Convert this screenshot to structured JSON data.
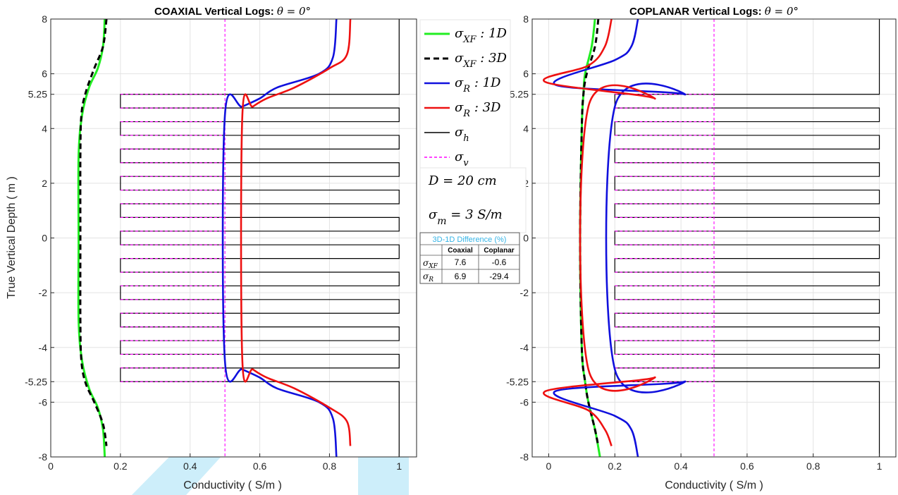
{
  "colors": {
    "xf1d": "#22ee22",
    "xf3d": "#000000",
    "r1d": "#1010dd",
    "r3d": "#ee1111",
    "sigma_h": "#000000",
    "sigma_v": "#ff00ff",
    "watermark": "#c8ecfa",
    "table_title": "#35b4e6"
  },
  "legend": {
    "items": [
      {
        "symbol": "σ",
        "sub": "XF",
        "suffix": " : 1D",
        "style": "xf1d"
      },
      {
        "symbol": "σ",
        "sub": "XF",
        "suffix": " : 3D",
        "style": "xf3d"
      },
      {
        "symbol": "σ",
        "sub": "R",
        "suffix": " : 1D",
        "style": "r1d"
      },
      {
        "symbol": "σ",
        "sub": "R",
        "suffix": " : 3D",
        "style": "r3d"
      },
      {
        "symbol": "σ",
        "sub": "h",
        "suffix": "",
        "style": "sigma_h"
      },
      {
        "symbol": "σ",
        "sub": "v",
        "suffix": "",
        "style": "sigma_v"
      }
    ]
  },
  "annotations": {
    "d_text": "D = 20 cm",
    "sigma_m_symbol": "σ",
    "sigma_m_sub": "m",
    "sigma_m_rest": " = 3 S/m"
  },
  "difference_table": {
    "title": "3D-1D Difference (%)",
    "columns": [
      "",
      "Coaxial",
      "Coplanar"
    ],
    "rows": [
      {
        "symbol": "σ",
        "sub": "XF",
        "coaxial": "7.6",
        "coplanar": "-0.6"
      },
      {
        "symbol": "σ",
        "sub": "R",
        "coaxial": "6.9",
        "coplanar": "-29.4"
      }
    ]
  },
  "chart_data": [
    {
      "type": "line",
      "title_main": "COAXIAL Vertical Logs: ",
      "title_theta": "θ = 0°",
      "xlabel": "Conductivity ( S/m )",
      "ylabel": "True Vertical Depth ( m )",
      "xlim": [
        0,
        1.05
      ],
      "ylim": [
        -8,
        8
      ],
      "xticks": [
        0,
        0.2,
        0.4,
        0.6,
        0.8,
        1
      ],
      "xtick_labels": [
        "0",
        "0.2",
        "0.4",
        "0.6",
        "0.8",
        "1"
      ],
      "yticks": [
        8,
        6,
        5.25,
        4,
        2,
        0,
        -2,
        -4,
        -5.25,
        -6,
        -8
      ],
      "ytick_labels": [
        "8",
        "6",
        "5.25",
        "4",
        "2",
        "0",
        "-2",
        "-4",
        "-5.25",
        "-6",
        "-8"
      ],
      "grid": true,
      "formation": {
        "sigma_h_shoulder": 1.0,
        "sigma_h_bed": 0.2,
        "sigma_v": 0.5,
        "laminated_zone": [
          -5.25,
          5.25
        ],
        "lamination_thickness_m": 0.5
      },
      "series": [
        {
          "key": "xf1d",
          "values": [
            [
              0.155,
              8
            ],
            [
              0.15,
              7
            ],
            [
              0.135,
              6.2
            ],
            [
              0.11,
              5.5
            ],
            [
              0.09,
              4.5
            ],
            [
              0.08,
              3
            ],
            [
              0.08,
              0
            ],
            [
              0.08,
              -3
            ],
            [
              0.09,
              -4.5
            ],
            [
              0.11,
              -5.5
            ],
            [
              0.135,
              -6.2
            ],
            [
              0.15,
              -7
            ],
            [
              0.155,
              -8
            ]
          ]
        },
        {
          "key": "xf3d",
          "values": [
            [
              0.16,
              8
            ],
            [
              0.15,
              7
            ],
            [
              0.125,
              6.2
            ],
            [
              0.1,
              5.3
            ],
            [
              0.088,
              4.5
            ],
            [
              0.085,
              3
            ],
            [
              0.085,
              0
            ],
            [
              0.085,
              -3
            ],
            [
              0.088,
              -4.5
            ],
            [
              0.1,
              -5.3
            ],
            [
              0.125,
              -6
            ],
            [
              0.15,
              -6.8
            ],
            [
              0.16,
              -7.6
            ]
          ]
        },
        {
          "key": "r1d",
          "values": [
            [
              0.82,
              8
            ],
            [
              0.81,
              6.6
            ],
            [
              0.77,
              6
            ],
            [
              0.65,
              5.5
            ],
            [
              0.6,
              5.1
            ],
            [
              0.55,
              4.8
            ],
            [
              0.5,
              4.5
            ],
            [
              0.5,
              -4.5
            ],
            [
              0.55,
              -4.8
            ],
            [
              0.6,
              -5.1
            ],
            [
              0.65,
              -5.5
            ],
            [
              0.77,
              -6
            ],
            [
              0.81,
              -6.6
            ],
            [
              0.82,
              -8
            ]
          ]
        },
        {
          "key": "r3d",
          "values": [
            [
              0.86,
              8
            ],
            [
              0.85,
              6.7
            ],
            [
              0.8,
              6.2
            ],
            [
              0.7,
              5.5
            ],
            [
              0.62,
              5.1
            ],
            [
              0.58,
              4.8
            ],
            [
              0.55,
              4.5
            ],
            [
              0.55,
              -4.5
            ],
            [
              0.58,
              -4.8
            ],
            [
              0.62,
              -5.1
            ],
            [
              0.7,
              -5.5
            ],
            [
              0.8,
              -6.2
            ],
            [
              0.85,
              -6.7
            ],
            [
              0.86,
              -7.6
            ]
          ]
        }
      ]
    },
    {
      "type": "line",
      "title_main": "COPLANAR Vertical Logs: ",
      "title_theta": "θ = 0°",
      "xlabel": "Conductivity ( S/m )",
      "ylabel": "",
      "xlim": [
        -0.05,
        1.05
      ],
      "ylim": [
        -8,
        8
      ],
      "xticks": [
        0,
        0.2,
        0.4,
        0.6,
        0.8,
        1
      ],
      "xtick_labels": [
        "0",
        "0.2",
        "0.4",
        "0.6",
        "0.8",
        "1"
      ],
      "yticks": [
        8,
        6,
        5.25,
        4,
        2,
        0,
        -2,
        -4,
        -5.25,
        -6,
        -8
      ],
      "ytick_labels": [
        "8",
        "6",
        "5.25",
        "4",
        "2",
        "0",
        "-2",
        "-4",
        "-5.25",
        "-6",
        "-8"
      ],
      "grid": true,
      "formation": {
        "sigma_h_shoulder": 1.0,
        "sigma_h_bed": 0.2,
        "sigma_v": 0.5,
        "laminated_zone": [
          -5.25,
          5.25
        ],
        "lamination_thickness_m": 0.5
      },
      "series": [
        {
          "key": "xf1d",
          "values": [
            [
              0.14,
              8
            ],
            [
              0.13,
              7
            ],
            [
              0.11,
              6
            ],
            [
              0.105,
              5.25
            ],
            [
              0.1,
              4
            ],
            [
              0.095,
              0
            ],
            [
              0.1,
              -4
            ],
            [
              0.11,
              -5.25
            ],
            [
              0.12,
              -6
            ],
            [
              0.14,
              -7
            ],
            [
              0.155,
              -8
            ]
          ]
        },
        {
          "key": "xf3d",
          "values": [
            [
              0.15,
              8
            ],
            [
              0.14,
              7
            ],
            [
              0.115,
              6
            ],
            [
              0.105,
              5.25
            ],
            [
              0.1,
              4
            ],
            [
              0.095,
              0
            ],
            [
              0.1,
              -4
            ],
            [
              0.11,
              -5.25
            ],
            [
              0.12,
              -6
            ],
            [
              0.14,
              -7
            ],
            [
              0.15,
              -7.6
            ]
          ]
        },
        {
          "key": "r1d",
          "values": [
            [
              0.27,
              8
            ],
            [
              0.25,
              7
            ],
            [
              0.2,
              6.5
            ],
            [
              0.02,
              5.6
            ],
            [
              0.41,
              5.25
            ],
            [
              0.2,
              4.8
            ],
            [
              0.2,
              -4.8
            ],
            [
              0.41,
              -5.25
            ],
            [
              0.02,
              -5.6
            ],
            [
              0.2,
              -6.5
            ],
            [
              0.25,
              -7
            ],
            [
              0.27,
              -8
            ]
          ]
        },
        {
          "key": "r3d",
          "values": [
            [
              0.19,
              8
            ],
            [
              0.17,
              7
            ],
            [
              0.12,
              6.3
            ],
            [
              -0.01,
              5.7
            ],
            [
              0.32,
              5.1
            ],
            [
              0.12,
              4.8
            ],
            [
              0.12,
              -4.8
            ],
            [
              0.32,
              -5.1
            ],
            [
              -0.01,
              -5.6
            ],
            [
              0.12,
              -6.3
            ],
            [
              0.17,
              -7
            ],
            [
              0.19,
              -7.6
            ]
          ]
        }
      ]
    }
  ]
}
